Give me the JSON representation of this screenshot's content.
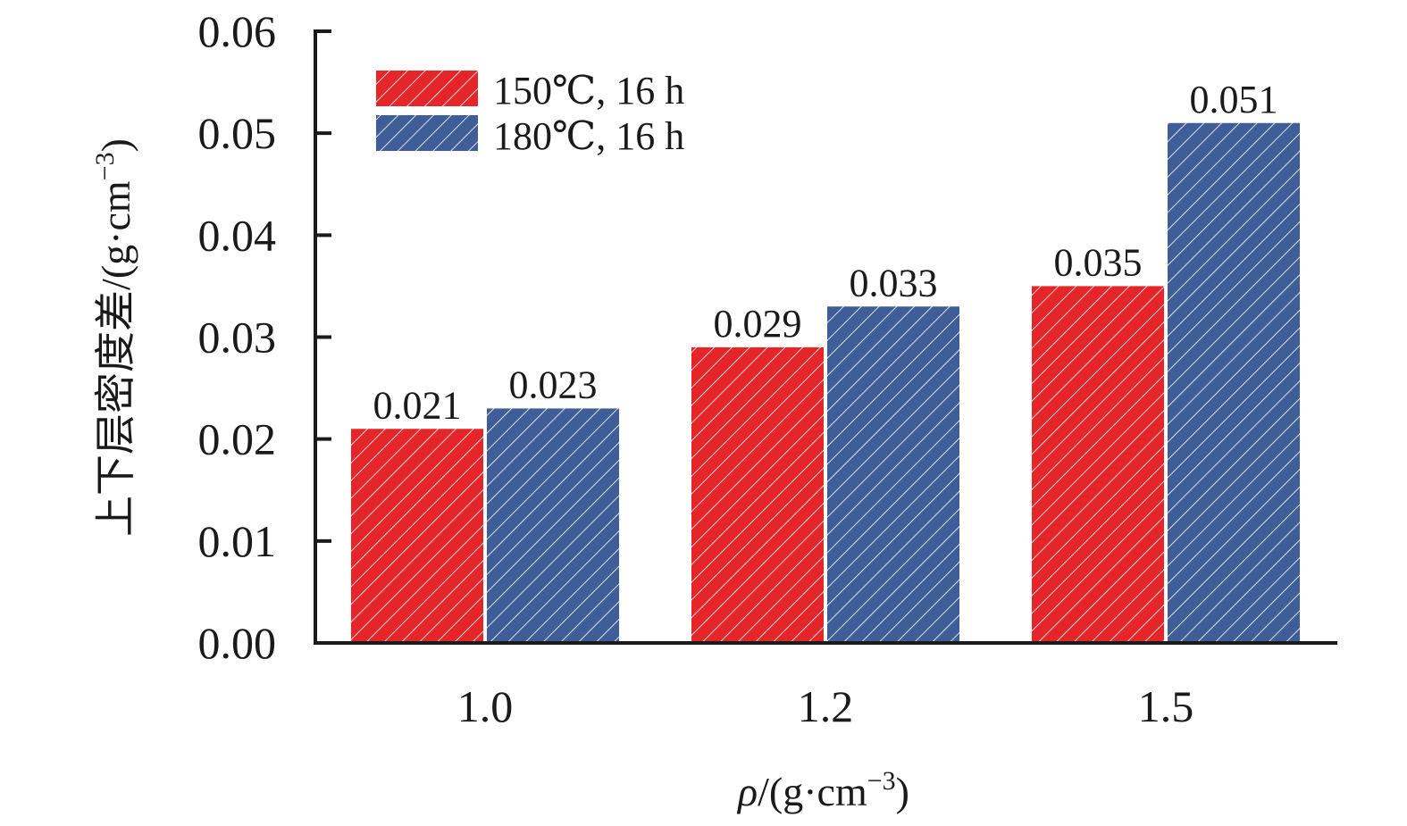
{
  "chart_data": {
    "type": "bar",
    "categories": [
      "1.0",
      "1.2",
      "1.5"
    ],
    "series": [
      {
        "name": "150℃, 16 h",
        "values": [
          0.021,
          0.029,
          0.035
        ],
        "labels": [
          "0.021",
          "0.029",
          "0.035"
        ],
        "color": "#e4262a"
      },
      {
        "name": "180℃, 16 h",
        "values": [
          0.023,
          0.033,
          0.051
        ],
        "labels": [
          "0.023",
          "0.033",
          "0.051"
        ],
        "color": "#3f5e98"
      }
    ],
    "ylim": [
      0,
      0.06
    ],
    "yticks": [
      0,
      0.01,
      0.02,
      0.03,
      0.04,
      0.05,
      0.06
    ],
    "ytick_labels": [
      "0.00",
      "0.01",
      "0.02",
      "0.03",
      "0.04",
      "0.05",
      "0.06"
    ],
    "xlabel": {
      "symbol": "ρ",
      "text": "/(g·cm",
      "exp": "−3",
      "close": ")"
    },
    "ylabel": {
      "text": "上下层密度差/(g·cm",
      "exp": "−3",
      "close": ")"
    },
    "legend_position": "top-left",
    "grid": false,
    "bar_pattern": "diagonal-hatch"
  }
}
